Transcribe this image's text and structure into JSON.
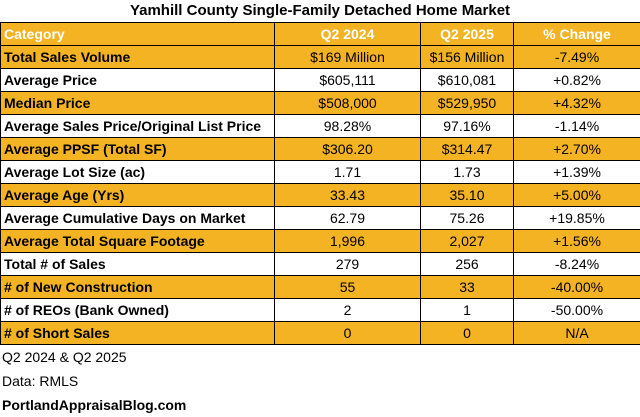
{
  "title": "Yamhill County Single-Family Detached Home Market",
  "table": {
    "header": [
      "Category",
      "Q2 2024",
      "Q2 2025",
      "% Change"
    ],
    "rows": [
      [
        "Total Sales Volume",
        "$169 Million",
        "$156 Million",
        "-7.49%"
      ],
      [
        "Average Price",
        "$605,111",
        "$610,081",
        "+0.82%"
      ],
      [
        "Median Price",
        "$508,000",
        "$529,950",
        "+4.32%"
      ],
      [
        "Average Sales Price/Original List Price",
        "98.28%",
        "97.16%",
        "-1.14%"
      ],
      [
        "Average PPSF (Total SF)",
        "$306.20",
        "$314.47",
        "+2.70%"
      ],
      [
        "Average Lot Size (ac)",
        "1.71",
        "1.73",
        "+1.39%"
      ],
      [
        "Average Age (Yrs)",
        "33.43",
        "35.10",
        "+5.00%"
      ],
      [
        "Average Cumulative Days on Market",
        "62.79",
        "75.26",
        "+19.85%"
      ],
      [
        "Average Total Square Footage",
        "1,996",
        "2,027",
        "+1.56%"
      ],
      [
        "Total # of Sales",
        "279",
        "256",
        "-8.24%"
      ],
      [
        "# of New Construction",
        "55",
        "33",
        "-40.00%"
      ],
      [
        "# of REOs (Bank Owned)",
        "2",
        "1",
        "-50.00%"
      ],
      [
        "# of Short Sales",
        "0",
        "0",
        "N/A"
      ]
    ]
  },
  "footer": [
    "Q2 2024 & Q2 2025",
    "Data: RMLS",
    "PortlandAppraisalBlog.com"
  ]
}
